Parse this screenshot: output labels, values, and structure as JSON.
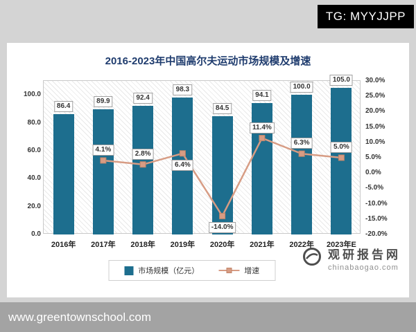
{
  "overlay": {
    "tg_badge": "TG: MYYJJPP",
    "bottom_url": "www.greentownschool.com"
  },
  "watermark": {
    "name": "观研报告网",
    "site": "chinabaogao.com"
  },
  "chart_data": {
    "type": "bar+line",
    "title": "2016-2023年中国高尔夫运动市场规模及增速",
    "categories": [
      "2016年",
      "2017年",
      "2018年",
      "2019年",
      "2020年",
      "2021年",
      "2022年",
      "2023年E"
    ],
    "bar_labels": [
      "86.4",
      "89.9",
      "92.4",
      "98.3",
      "84.5",
      "94.1",
      "100.0",
      "105.0"
    ],
    "series": [
      {
        "name": "市场规模（亿元）",
        "type": "bar",
        "axis": "left",
        "color": "#1d6e8e",
        "values": [
          86.4,
          89.9,
          92.4,
          98.3,
          84.5,
          94.1,
          100.0,
          105.0
        ]
      },
      {
        "name": "增速",
        "type": "line",
        "axis": "right",
        "color": "#d79c84",
        "marker_border": "#c08468",
        "values": [
          null,
          4.1,
          2.8,
          6.4,
          -14.0,
          11.4,
          6.3,
          5.0
        ],
        "labels": [
          "",
          "4.1%",
          "2.8%",
          "6.4%",
          "-14.0%",
          "11.4%",
          "6.3%",
          "5.0%"
        ],
        "label_offsets": [
          "",
          "above",
          "above",
          "below",
          "below",
          "above",
          "above",
          "above"
        ]
      }
    ],
    "left_axis": {
      "min": 0,
      "max": 110,
      "ticks": [
        "100.0",
        "80.0",
        "60.0",
        "40.0",
        "20.0",
        "0.0"
      ]
    },
    "right_axis": {
      "min": -20,
      "max": 30,
      "ticks": [
        "30.0%",
        "25.0%",
        "20.0%",
        "15.0%",
        "10.0%",
        "5.0%",
        "0.0%",
        "-5.0%",
        "-10.0%",
        "-15.0%",
        "-20.0%"
      ]
    },
    "legend": [
      "市场规模（亿元）",
      "增速"
    ],
    "legend_position": "bottom",
    "grid": false
  }
}
